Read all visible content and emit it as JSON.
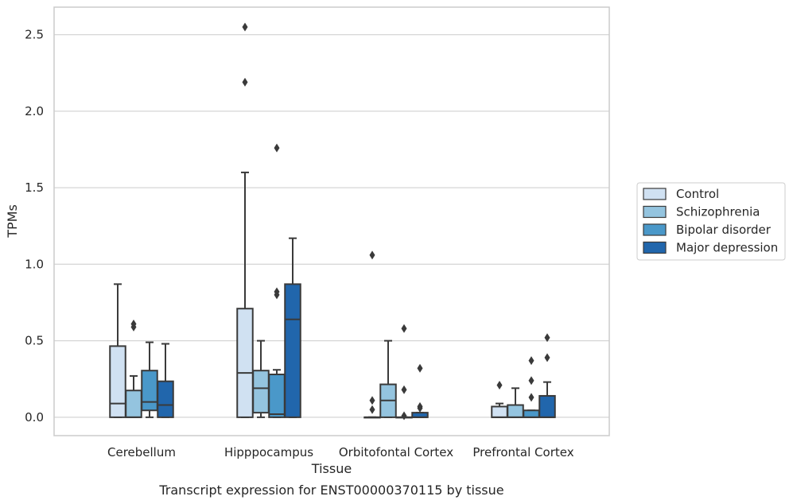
{
  "chart_data": {
    "type": "box",
    "caption": "Transcript expression for ENST00000370115 by tissue",
    "xlabel": "Tissue",
    "ylabel": "TPMs",
    "ylim": [
      -0.12,
      2.68
    ],
    "yticks": [
      0.0,
      0.5,
      1.0,
      1.5,
      2.0,
      2.5
    ],
    "ytick_labels": [
      "0.0",
      "0.5",
      "1.0",
      "1.5",
      "2.0",
      "2.5"
    ],
    "grid": "horizontal",
    "legend_position": "right",
    "categories": [
      "Cerebellum",
      "Hipppocampus",
      "Orbitofontal Cortex",
      "Prefrontal Cortex"
    ],
    "series": [
      {
        "name": "Control",
        "color": "#d0e1f2",
        "boxes": [
          {
            "whislo": 0.0,
            "q1": 0.0,
            "med": 0.09,
            "q3": 0.465,
            "whishi": 0.87,
            "fliers": []
          },
          {
            "whislo": 0.0,
            "q1": 0.0,
            "med": 0.29,
            "q3": 0.71,
            "whishi": 1.6,
            "fliers": [
              2.19,
              2.55
            ]
          },
          {
            "whislo": 0.0,
            "q1": 0.0,
            "med": 0.0,
            "q3": 0.0,
            "whishi": 0.0,
            "fliers": [
              0.05,
              0.11,
              1.06
            ]
          },
          {
            "whislo": 0.0,
            "q1": 0.0,
            "med": 0.0,
            "q3": 0.07,
            "whishi": 0.09,
            "fliers": [
              0.21
            ]
          }
        ]
      },
      {
        "name": "Schizophrenia",
        "color": "#94c4df",
        "boxes": [
          {
            "whislo": 0.0,
            "q1": 0.0,
            "med": 0.0,
            "q3": 0.175,
            "whishi": 0.27,
            "fliers": [
              0.59,
              0.61
            ]
          },
          {
            "whislo": 0.0,
            "q1": 0.03,
            "med": 0.19,
            "q3": 0.305,
            "whishi": 0.5,
            "fliers": []
          },
          {
            "whislo": 0.0,
            "q1": 0.0,
            "med": 0.11,
            "q3": 0.215,
            "whishi": 0.5,
            "fliers": []
          },
          {
            "whislo": 0.0,
            "q1": 0.0,
            "med": 0.0,
            "q3": 0.08,
            "whishi": 0.19,
            "fliers": []
          }
        ]
      },
      {
        "name": "Bipolar disorder",
        "color": "#4a98c9",
        "boxes": [
          {
            "whislo": 0.0,
            "q1": 0.045,
            "med": 0.1,
            "q3": 0.305,
            "whishi": 0.49,
            "fliers": []
          },
          {
            "whislo": 0.0,
            "q1": 0.0,
            "med": 0.02,
            "q3": 0.28,
            "whishi": 0.31,
            "fliers": [
              0.8,
              0.82,
              1.76
            ]
          },
          {
            "whislo": 0.0,
            "q1": 0.0,
            "med": 0.0,
            "q3": 0.0,
            "whishi": 0.0,
            "fliers": [
              0.01,
              0.18,
              0.58
            ]
          },
          {
            "whislo": 0.0,
            "q1": 0.0,
            "med": 0.0,
            "q3": 0.045,
            "whishi": 0.045,
            "fliers": [
              0.13,
              0.24,
              0.37
            ]
          }
        ]
      },
      {
        "name": "Major depression",
        "color": "#2166ac",
        "boxes": [
          {
            "whislo": 0.0,
            "q1": 0.0,
            "med": 0.08,
            "q3": 0.235,
            "whishi": 0.48,
            "fliers": []
          },
          {
            "whislo": 0.0,
            "q1": 0.0,
            "med": 0.64,
            "q3": 0.87,
            "whishi": 1.17,
            "fliers": []
          },
          {
            "whislo": 0.0,
            "q1": 0.0,
            "med": 0.0,
            "q3": 0.03,
            "whishi": 0.03,
            "fliers": [
              0.06,
              0.07,
              0.32
            ]
          },
          {
            "whislo": 0.0,
            "q1": 0.0,
            "med": 0.0,
            "q3": 0.14,
            "whishi": 0.23,
            "fliers": [
              0.39,
              0.52
            ]
          }
        ]
      }
    ]
  }
}
